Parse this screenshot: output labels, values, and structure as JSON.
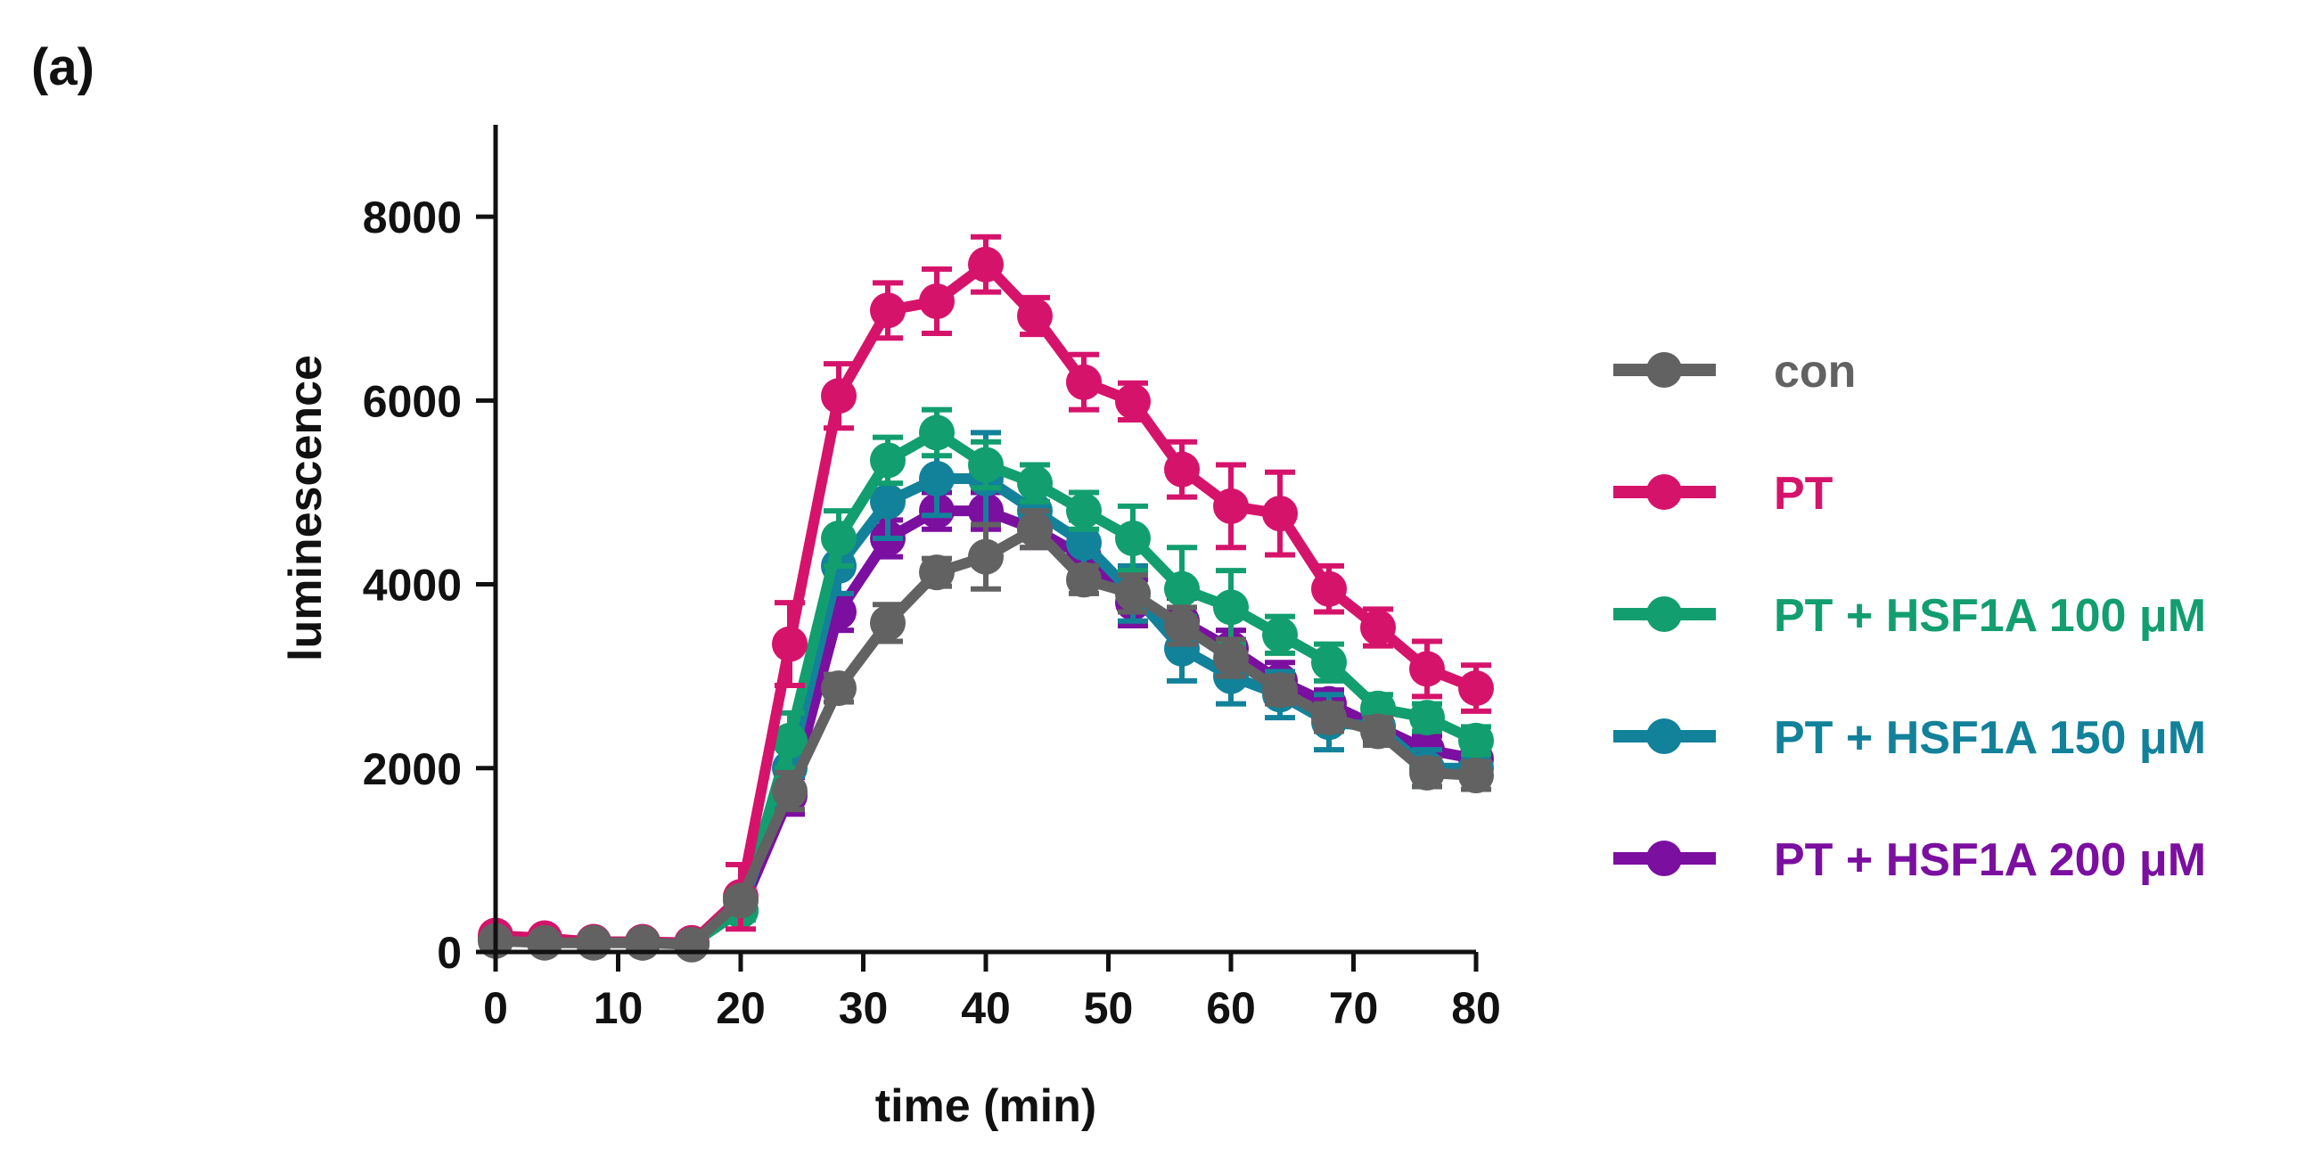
{
  "panel_label": "(a)",
  "chart_data": {
    "type": "line",
    "title": "",
    "xlabel": "time (min)",
    "ylabel": "luminescence",
    "xlim": [
      0,
      80
    ],
    "ylim": [
      0,
      9000
    ],
    "xticks": [
      0,
      10,
      20,
      30,
      40,
      50,
      60,
      70,
      80
    ],
    "yticks": [
      0,
      2000,
      4000,
      6000,
      8000
    ],
    "x": [
      0,
      4,
      8,
      12,
      16,
      20,
      24,
      28,
      32,
      36,
      40,
      44,
      48,
      52,
      56,
      60,
      64,
      68,
      72,
      76,
      80
    ],
    "legend_position": "right",
    "series": [
      {
        "name": "PT + HSF1A 200 μM",
        "color": "#7B0FA0",
        "values": [
          150,
          130,
          110,
          100,
          90,
          450,
          1700,
          3700,
          4500,
          4800,
          4800,
          4600,
          4300,
          3800,
          3600,
          3300,
          2950,
          2700,
          2450,
          2200,
          2100
        ],
        "errors": [
          50,
          40,
          40,
          40,
          40,
          100,
          200,
          200,
          200,
          200,
          200,
          200,
          200,
          250,
          250,
          200,
          200,
          150,
          150,
          150,
          150
        ]
      },
      {
        "name": "PT + HSF1A 150 μM",
        "color": "#12819A",
        "values": [
          150,
          130,
          110,
          110,
          90,
          450,
          2000,
          4200,
          4900,
          5150,
          5150,
          4800,
          4450,
          3900,
          3300,
          3000,
          2800,
          2500,
          2450,
          2000,
          2000
        ],
        "errors": [
          50,
          40,
          40,
          40,
          40,
          100,
          300,
          300,
          400,
          400,
          500,
          300,
          250,
          300,
          350,
          300,
          250,
          300,
          200,
          200,
          150
        ]
      },
      {
        "name": "PT + HSF1A 100 μM",
        "color": "#129E6E",
        "values": [
          150,
          130,
          110,
          110,
          90,
          450,
          2300,
          4500,
          5350,
          5650,
          5300,
          5100,
          4800,
          4500,
          3950,
          3750,
          3450,
          3150,
          2650,
          2550,
          2300
        ],
        "errors": [
          50,
          40,
          40,
          40,
          40,
          100,
          300,
          300,
          250,
          250,
          250,
          200,
          200,
          350,
          450,
          400,
          200,
          200,
          150,
          150,
          150
        ]
      },
      {
        "name": "PT",
        "color": "#D6136B",
        "values": [
          180,
          150,
          110,
          110,
          100,
          600,
          3350,
          6050,
          6980,
          7080,
          7480,
          6920,
          6200,
          5990,
          5250,
          4850,
          4770,
          3950,
          3530,
          3080,
          2870
        ],
        "errors": [
          60,
          40,
          40,
          40,
          40,
          350,
          450,
          350,
          300,
          350,
          300,
          200,
          300,
          200,
          300,
          450,
          450,
          250,
          200,
          300,
          250
        ]
      },
      {
        "name": "con",
        "color": "#626262",
        "values": [
          120,
          100,
          100,
          100,
          80,
          560,
          1750,
          2870,
          3580,
          4130,
          4300,
          4600,
          4050,
          3900,
          3550,
          3200,
          2850,
          2550,
          2400,
          1950,
          1920
        ],
        "errors": [
          40,
          30,
          30,
          30,
          30,
          100,
          200,
          150,
          200,
          150,
          350,
          200,
          150,
          200,
          200,
          200,
          150,
          150,
          150,
          150,
          150
        ]
      }
    ],
    "legend": [
      "con",
      "PT",
      "PT + HSF1A 100 μM",
      "PT + HSF1A 150 μM",
      "PT + HSF1A 200 μM"
    ]
  }
}
